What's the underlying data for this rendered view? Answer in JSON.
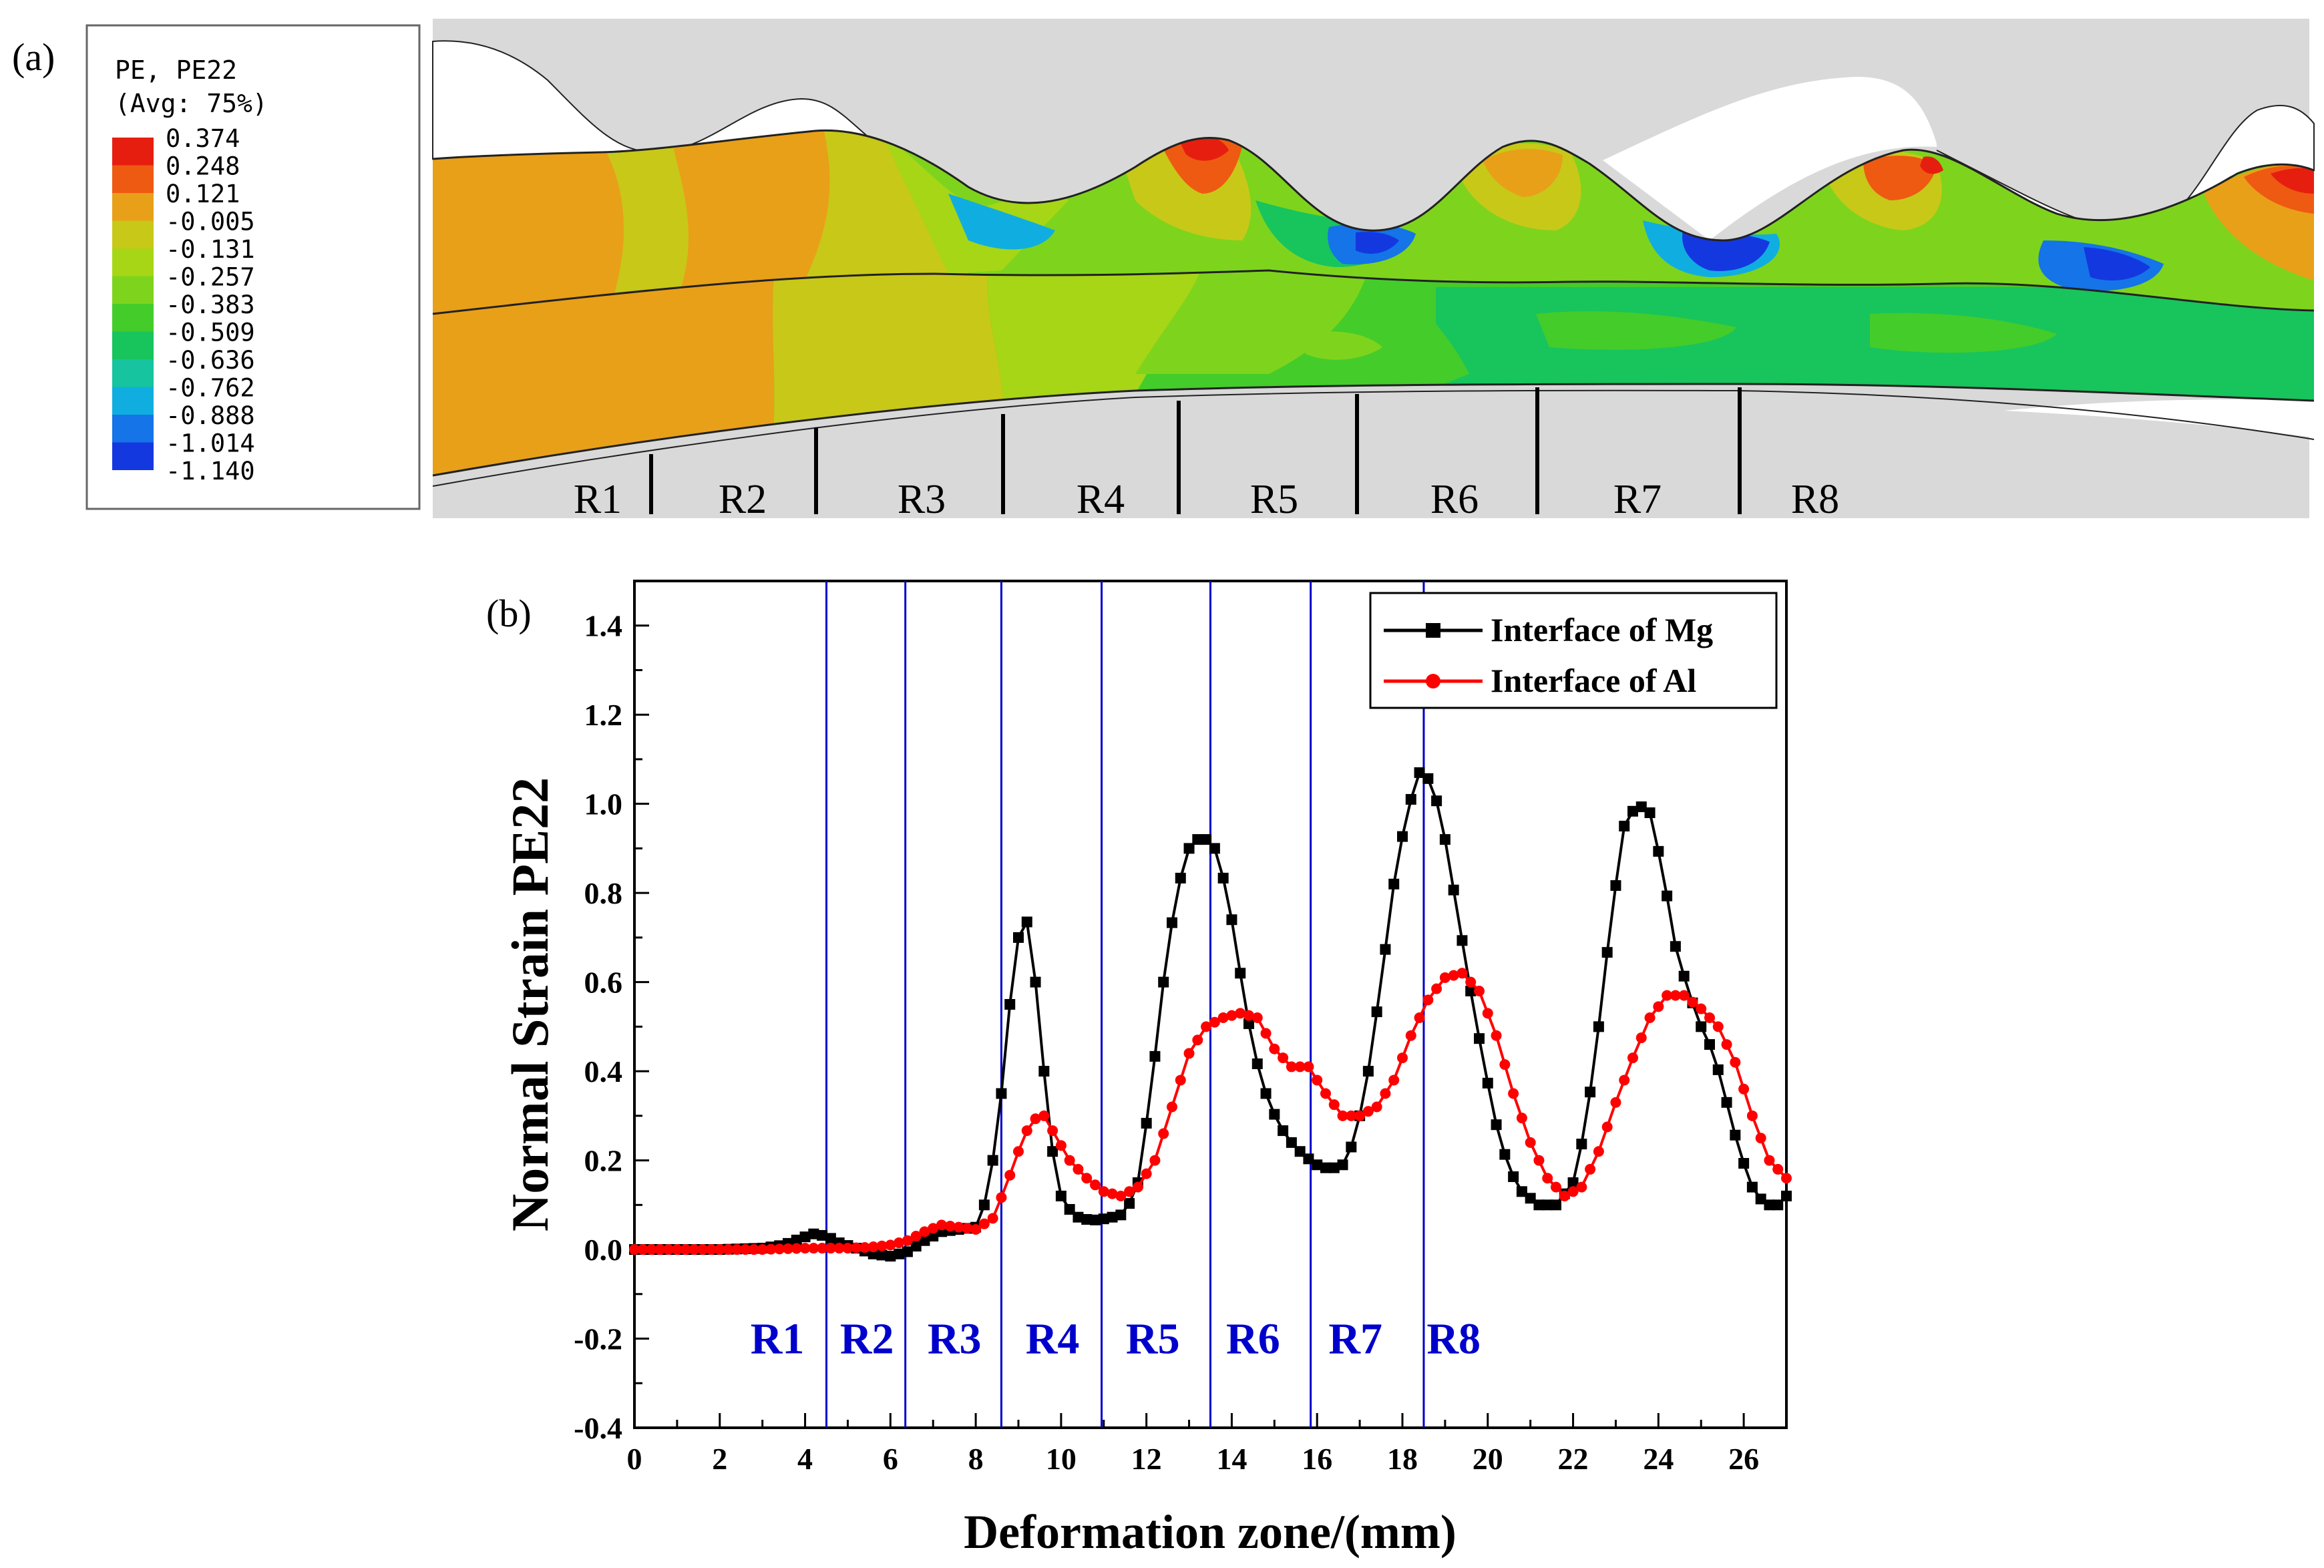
{
  "panel_a": {
    "label": "(a)",
    "legend": {
      "title_line1": "PE, PE22",
      "title_line2": "(Avg: 75%)",
      "levels": [
        "0.374",
        "0.248",
        "0.121",
        "-0.005",
        "-0.131",
        "-0.257",
        "-0.383",
        "-0.509",
        "-0.636",
        "-0.762",
        "-0.888",
        "-1.014",
        "-1.140"
      ],
      "band_colors": [
        "#e61e10",
        "#ee5a12",
        "#e8a018",
        "#c8c818",
        "#a6d616",
        "#7ed41c",
        "#44cc2a",
        "#18c45c",
        "#16c4a0",
        "#10aee0",
        "#1474e8",
        "#1438e0"
      ]
    },
    "zones": [
      "R1",
      "R2",
      "R3",
      "R4",
      "R5",
      "R6",
      "R7",
      "R8"
    ]
  },
  "panel_b": {
    "label": "(b)"
  },
  "chart_data": {
    "type": "line",
    "title": "",
    "xlabel": "Deformation zone/(mm)",
    "ylabel": "Normal Strain PE22",
    "xlim": [
      0,
      27
    ],
    "ylim": [
      -0.4,
      1.5
    ],
    "xticks": [
      "0",
      "2",
      "4",
      "6",
      "8",
      "10",
      "12",
      "14",
      "16",
      "18",
      "20",
      "22",
      "24",
      "26"
    ],
    "yticks": [
      "-0.4",
      "-0.2",
      "0.0",
      "0.2",
      "0.4",
      "0.6",
      "0.8",
      "1.0",
      "1.2",
      "1.4"
    ],
    "legend_position": "top-right",
    "grid": false,
    "zone_boundaries": [
      4.5,
      6.35,
      8.6,
      10.95,
      13.5,
      15.85,
      18.5
    ],
    "zone_labels": [
      {
        "text": "R1",
        "x": 3.35
      },
      {
        "text": "R2",
        "x": 5.45
      },
      {
        "text": "R3",
        "x": 7.5
      },
      {
        "text": "R4",
        "x": 9.8
      },
      {
        "text": "R5",
        "x": 12.15
      },
      {
        "text": "R6",
        "x": 14.5
      },
      {
        "text": "R7",
        "x": 16.9
      },
      {
        "text": "R8",
        "x": 19.2
      }
    ],
    "colors": {
      "mg": "#000000",
      "al": "#ff0000",
      "zone": "#0000cc"
    },
    "series": [
      {
        "name": "Interface of Mg",
        "marker": "square",
        "points": [
          [
            0,
            0
          ],
          [
            1,
            0
          ],
          [
            2,
            0
          ],
          [
            3,
            0.003
          ],
          [
            3.5,
            0.01
          ],
          [
            3.9,
            0.025
          ],
          [
            4.2,
            0.035
          ],
          [
            4.5,
            0.03
          ],
          [
            4.8,
            0.015
          ],
          [
            5.2,
            0.003
          ],
          [
            5.6,
            -0.01
          ],
          [
            6.0,
            -0.015
          ],
          [
            6.4,
            -0.005
          ],
          [
            6.8,
            0.02
          ],
          [
            7.2,
            0.04
          ],
          [
            7.6,
            0.045
          ],
          [
            8.0,
            0.05
          ],
          [
            8.2,
            0.1
          ],
          [
            8.4,
            0.2
          ],
          [
            8.6,
            0.35
          ],
          [
            8.8,
            0.55
          ],
          [
            9.0,
            0.7
          ],
          [
            9.2,
            0.735
          ],
          [
            9.4,
            0.6
          ],
          [
            9.6,
            0.4
          ],
          [
            9.8,
            0.22
          ],
          [
            10.0,
            0.12
          ],
          [
            10.3,
            0.075
          ],
          [
            10.7,
            0.065
          ],
          [
            11.1,
            0.07
          ],
          [
            11.5,
            0.08
          ],
          [
            11.8,
            0.15
          ],
          [
            12.1,
            0.35
          ],
          [
            12.4,
            0.6
          ],
          [
            12.7,
            0.8
          ],
          [
            13.0,
            0.9
          ],
          [
            13.3,
            0.93
          ],
          [
            13.6,
            0.9
          ],
          [
            13.9,
            0.8
          ],
          [
            14.2,
            0.62
          ],
          [
            14.5,
            0.45
          ],
          [
            14.8,
            0.35
          ],
          [
            15.1,
            0.28
          ],
          [
            15.4,
            0.24
          ],
          [
            15.7,
            0.21
          ],
          [
            16.0,
            0.19
          ],
          [
            16.3,
            0.18
          ],
          [
            16.6,
            0.19
          ],
          [
            16.9,
            0.25
          ],
          [
            17.2,
            0.4
          ],
          [
            17.5,
            0.6
          ],
          [
            17.8,
            0.82
          ],
          [
            18.1,
            0.98
          ],
          [
            18.4,
            1.07
          ],
          [
            18.7,
            1.05
          ],
          [
            19.0,
            0.92
          ],
          [
            19.3,
            0.75
          ],
          [
            19.6,
            0.58
          ],
          [
            19.9,
            0.42
          ],
          [
            20.2,
            0.28
          ],
          [
            20.5,
            0.18
          ],
          [
            20.8,
            0.13
          ],
          [
            21.2,
            0.1
          ],
          [
            21.6,
            0.1
          ],
          [
            22.0,
            0.15
          ],
          [
            22.3,
            0.28
          ],
          [
            22.6,
            0.5
          ],
          [
            22.9,
            0.75
          ],
          [
            23.2,
            0.95
          ],
          [
            23.5,
            1.0
          ],
          [
            23.8,
            0.98
          ],
          [
            24.1,
            0.85
          ],
          [
            24.4,
            0.68
          ],
          [
            24.7,
            0.58
          ],
          [
            25.0,
            0.5
          ],
          [
            25.3,
            0.44
          ],
          [
            25.6,
            0.33
          ],
          [
            25.9,
            0.22
          ],
          [
            26.2,
            0.14
          ],
          [
            26.5,
            0.1
          ],
          [
            26.8,
            0.1
          ],
          [
            27.0,
            0.12
          ]
        ]
      },
      {
        "name": "Interface of Al",
        "marker": "circle",
        "points": [
          [
            0,
            0
          ],
          [
            1,
            0
          ],
          [
            2,
            0
          ],
          [
            3,
            0
          ],
          [
            4,
            0.003
          ],
          [
            5,
            0.003
          ],
          [
            5.5,
            0.005
          ],
          [
            6.0,
            0.01
          ],
          [
            6.4,
            0.02
          ],
          [
            6.8,
            0.04
          ],
          [
            7.2,
            0.055
          ],
          [
            7.6,
            0.05
          ],
          [
            8.0,
            0.045
          ],
          [
            8.4,
            0.07
          ],
          [
            8.7,
            0.14
          ],
          [
            9.0,
            0.22
          ],
          [
            9.3,
            0.29
          ],
          [
            9.6,
            0.3
          ],
          [
            9.9,
            0.25
          ],
          [
            10.2,
            0.2
          ],
          [
            10.6,
            0.16
          ],
          [
            11.0,
            0.13
          ],
          [
            11.4,
            0.12
          ],
          [
            11.8,
            0.14
          ],
          [
            12.2,
            0.2
          ],
          [
            12.6,
            0.32
          ],
          [
            13.0,
            0.44
          ],
          [
            13.4,
            0.5
          ],
          [
            13.8,
            0.52
          ],
          [
            14.2,
            0.53
          ],
          [
            14.6,
            0.52
          ],
          [
            15.0,
            0.45
          ],
          [
            15.4,
            0.41
          ],
          [
            15.8,
            0.41
          ],
          [
            16.2,
            0.35
          ],
          [
            16.6,
            0.3
          ],
          [
            17.0,
            0.3
          ],
          [
            17.4,
            0.32
          ],
          [
            17.8,
            0.38
          ],
          [
            18.2,
            0.48
          ],
          [
            18.6,
            0.56
          ],
          [
            19.0,
            0.61
          ],
          [
            19.4,
            0.62
          ],
          [
            19.8,
            0.58
          ],
          [
            20.2,
            0.48
          ],
          [
            20.6,
            0.35
          ],
          [
            21.0,
            0.24
          ],
          [
            21.4,
            0.16
          ],
          [
            21.8,
            0.12
          ],
          [
            22.2,
            0.14
          ],
          [
            22.6,
            0.22
          ],
          [
            23.0,
            0.33
          ],
          [
            23.4,
            0.43
          ],
          [
            23.8,
            0.52
          ],
          [
            24.2,
            0.57
          ],
          [
            24.6,
            0.57
          ],
          [
            25.0,
            0.54
          ],
          [
            25.4,
            0.5
          ],
          [
            25.8,
            0.42
          ],
          [
            26.2,
            0.3
          ],
          [
            26.6,
            0.2
          ],
          [
            27.0,
            0.16
          ]
        ]
      }
    ]
  }
}
